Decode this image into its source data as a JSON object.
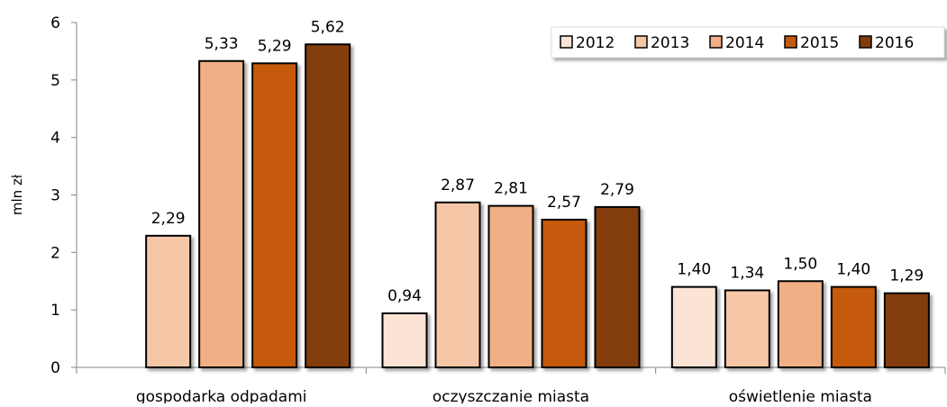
{
  "chart_data": {
    "type": "bar",
    "title": "",
    "xlabel": "",
    "ylabel": "mln zł",
    "ylim": [
      0,
      6
    ],
    "yticks": [
      0,
      1,
      2,
      3,
      4,
      5,
      6
    ],
    "ytick_labels": [
      "0",
      "1",
      "2",
      "3",
      "4",
      "5",
      "6"
    ],
    "grid": false,
    "legend_position": "top-right",
    "categories": [
      "gospodarka odpadami",
      "oczyszczanie miasta",
      "oświetlenie miasta"
    ],
    "series": [
      {
        "name": "2012",
        "color": "#FBE3D5",
        "values": [
          null,
          0.94,
          1.4
        ],
        "labels": [
          "",
          "0,94",
          "1,40"
        ]
      },
      {
        "name": "2013",
        "color": "#F6C7A6",
        "values": [
          2.29,
          2.87,
          1.34
        ],
        "labels": [
          "2,29",
          "2,87",
          "1,34"
        ]
      },
      {
        "name": "2014",
        "color": "#F1AF86",
        "values": [
          5.33,
          2.81,
          1.5
        ],
        "labels": [
          "5,33",
          "2,81",
          "1,50"
        ]
      },
      {
        "name": "2015",
        "color": "#C55A11",
        "values": [
          5.29,
          2.57,
          1.4
        ],
        "labels": [
          "5,29",
          "2,57",
          "1,40"
        ]
      },
      {
        "name": "2016",
        "color": "#843C0C",
        "values": [
          5.62,
          2.79,
          1.29
        ],
        "labels": [
          "5,62",
          "2,79",
          "1,29"
        ]
      }
    ]
  }
}
